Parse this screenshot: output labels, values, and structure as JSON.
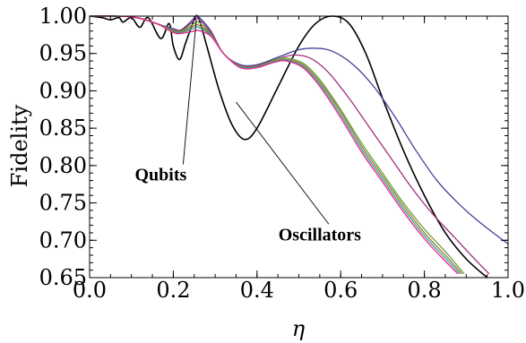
{
  "chart_data": {
    "type": "line",
    "title": "",
    "xlabel": "η",
    "ylabel": "Fidelity",
    "xlim": [
      0.0,
      1.0
    ],
    "ylim": [
      0.65,
      1.0
    ],
    "x_ticks": [
      0.0,
      0.2,
      0.4,
      0.6,
      0.8,
      1.0
    ],
    "x_tick_labels": [
      "0.0",
      "0.2",
      "0.4",
      "0.6",
      "0.8",
      "1.0"
    ],
    "y_ticks": [
      0.65,
      0.7,
      0.75,
      0.8,
      0.85,
      0.9,
      0.95,
      1.0
    ],
    "y_tick_labels": [
      "0.65",
      "0.70",
      "0.75",
      "0.80",
      "0.85",
      "0.90",
      "0.95",
      "1.00"
    ],
    "grid": false,
    "series": [
      {
        "color": "#000000",
        "points": [
          [
            0,
            1.0
          ],
          [
            0.03,
            0.998
          ],
          [
            0.05,
            0.995
          ],
          [
            0.07,
            0.998
          ],
          [
            0.08,
            0.992
          ],
          [
            0.1,
            0.998
          ],
          [
            0.12,
            0.985
          ],
          [
            0.14,
            0.998
          ],
          [
            0.17,
            0.97
          ],
          [
            0.19,
            0.99
          ],
          [
            0.2,
            0.96
          ],
          [
            0.215,
            0.942
          ],
          [
            0.23,
            0.965
          ],
          [
            0.25,
            0.995
          ],
          [
            0.26,
            0.998
          ],
          [
            0.28,
            0.96
          ],
          [
            0.31,
            0.9
          ],
          [
            0.34,
            0.855
          ],
          [
            0.37,
            0.835
          ],
          [
            0.4,
            0.85
          ],
          [
            0.45,
            0.905
          ],
          [
            0.5,
            0.96
          ],
          [
            0.54,
            0.99
          ],
          [
            0.58,
            1.0
          ],
          [
            0.62,
            0.99
          ],
          [
            0.66,
            0.95
          ],
          [
            0.7,
            0.89
          ],
          [
            0.75,
            0.82
          ],
          [
            0.8,
            0.76
          ],
          [
            0.85,
            0.71
          ],
          [
            0.9,
            0.675
          ],
          [
            0.95,
            0.65
          ]
        ]
      },
      {
        "color": "#40409a",
        "points": [
          [
            0,
            1.0
          ],
          [
            0.1,
            0.999
          ],
          [
            0.16,
            0.99
          ],
          [
            0.2,
            0.983
          ],
          [
            0.22,
            0.982
          ],
          [
            0.25,
            0.997
          ],
          [
            0.26,
            0.999
          ],
          [
            0.29,
            0.98
          ],
          [
            0.32,
            0.95
          ],
          [
            0.36,
            0.935
          ],
          [
            0.4,
            0.935
          ],
          [
            0.45,
            0.945
          ],
          [
            0.5,
            0.955
          ],
          [
            0.54,
            0.957
          ],
          [
            0.58,
            0.953
          ],
          [
            0.63,
            0.935
          ],
          [
            0.68,
            0.905
          ],
          [
            0.73,
            0.865
          ],
          [
            0.78,
            0.82
          ],
          [
            0.83,
            0.78
          ],
          [
            0.88,
            0.75
          ],
          [
            0.93,
            0.725
          ],
          [
            1.0,
            0.695
          ]
        ]
      },
      {
        "color": "#a0307a",
        "points": [
          [
            0,
            1.0
          ],
          [
            0.1,
            0.999
          ],
          [
            0.16,
            0.99
          ],
          [
            0.2,
            0.982
          ],
          [
            0.22,
            0.981
          ],
          [
            0.25,
            0.994
          ],
          [
            0.26,
            0.996
          ],
          [
            0.29,
            0.978
          ],
          [
            0.32,
            0.95
          ],
          [
            0.36,
            0.934
          ],
          [
            0.4,
            0.934
          ],
          [
            0.45,
            0.943
          ],
          [
            0.49,
            0.948
          ],
          [
            0.53,
            0.943
          ],
          [
            0.57,
            0.925
          ],
          [
            0.62,
            0.89
          ],
          [
            0.67,
            0.85
          ],
          [
            0.72,
            0.81
          ],
          [
            0.77,
            0.77
          ],
          [
            0.82,
            0.735
          ],
          [
            0.87,
            0.705
          ],
          [
            0.92,
            0.675
          ],
          [
            0.955,
            0.655
          ]
        ]
      },
      {
        "color": "#6aa040",
        "points": [
          [
            0,
            1.0
          ],
          [
            0.1,
            0.999
          ],
          [
            0.16,
            0.99
          ],
          [
            0.2,
            0.981
          ],
          [
            0.22,
            0.98
          ],
          [
            0.25,
            0.99
          ],
          [
            0.26,
            0.992
          ],
          [
            0.29,
            0.976
          ],
          [
            0.32,
            0.95
          ],
          [
            0.36,
            0.933
          ],
          [
            0.4,
            0.933
          ],
          [
            0.44,
            0.941
          ],
          [
            0.47,
            0.944
          ],
          [
            0.51,
            0.937
          ],
          [
            0.55,
            0.915
          ],
          [
            0.6,
            0.875
          ],
          [
            0.65,
            0.83
          ],
          [
            0.7,
            0.79
          ],
          [
            0.75,
            0.75
          ],
          [
            0.8,
            0.715
          ],
          [
            0.85,
            0.685
          ],
          [
            0.895,
            0.655
          ]
        ]
      },
      {
        "color": "#9a7a30",
        "points": [
          [
            0,
            1.0
          ],
          [
            0.1,
            0.999
          ],
          [
            0.16,
            0.99
          ],
          [
            0.2,
            0.98
          ],
          [
            0.22,
            0.979
          ],
          [
            0.25,
            0.987
          ],
          [
            0.26,
            0.988
          ],
          [
            0.29,
            0.975
          ],
          [
            0.32,
            0.95
          ],
          [
            0.36,
            0.932
          ],
          [
            0.4,
            0.932
          ],
          [
            0.44,
            0.94
          ],
          [
            0.47,
            0.942
          ],
          [
            0.51,
            0.935
          ],
          [
            0.55,
            0.912
          ],
          [
            0.6,
            0.872
          ],
          [
            0.65,
            0.826
          ],
          [
            0.7,
            0.786
          ],
          [
            0.75,
            0.746
          ],
          [
            0.8,
            0.71
          ],
          [
            0.85,
            0.68
          ],
          [
            0.89,
            0.655
          ]
        ]
      },
      {
        "color": "#30a0a0",
        "points": [
          [
            0,
            1.0
          ],
          [
            0.1,
            0.999
          ],
          [
            0.16,
            0.99
          ],
          [
            0.2,
            0.979
          ],
          [
            0.22,
            0.978
          ],
          [
            0.25,
            0.984
          ],
          [
            0.26,
            0.985
          ],
          [
            0.29,
            0.974
          ],
          [
            0.32,
            0.95
          ],
          [
            0.36,
            0.932
          ],
          [
            0.4,
            0.932
          ],
          [
            0.44,
            0.939
          ],
          [
            0.47,
            0.941
          ],
          [
            0.51,
            0.933
          ],
          [
            0.55,
            0.909
          ],
          [
            0.6,
            0.868
          ],
          [
            0.65,
            0.822
          ],
          [
            0.7,
            0.782
          ],
          [
            0.75,
            0.742
          ],
          [
            0.8,
            0.706
          ],
          [
            0.85,
            0.676
          ],
          [
            0.885,
            0.655
          ]
        ]
      },
      {
        "color": "#ee2288",
        "points": [
          [
            0,
            1.0
          ],
          [
            0.1,
            0.999
          ],
          [
            0.16,
            0.99
          ],
          [
            0.2,
            0.978
          ],
          [
            0.22,
            0.977
          ],
          [
            0.25,
            0.98
          ],
          [
            0.26,
            0.981
          ],
          [
            0.29,
            0.973
          ],
          [
            0.32,
            0.95
          ],
          [
            0.36,
            0.931
          ],
          [
            0.4,
            0.931
          ],
          [
            0.44,
            0.938
          ],
          [
            0.47,
            0.94
          ],
          [
            0.51,
            0.931
          ],
          [
            0.55,
            0.906
          ],
          [
            0.6,
            0.864
          ],
          [
            0.65,
            0.818
          ],
          [
            0.7,
            0.778
          ],
          [
            0.75,
            0.738
          ],
          [
            0.8,
            0.702
          ],
          [
            0.85,
            0.672
          ],
          [
            0.88,
            0.655
          ]
        ]
      }
    ],
    "annotations": [
      {
        "text": "Qubits",
        "label_at": [
          0.17,
          0.78
        ],
        "arrow_to": [
          0.255,
          0.995
        ]
      },
      {
        "text": "Oscillators",
        "label_at": [
          0.55,
          0.7
        ],
        "arrow_to": [
          0.35,
          0.885
        ]
      }
    ]
  }
}
